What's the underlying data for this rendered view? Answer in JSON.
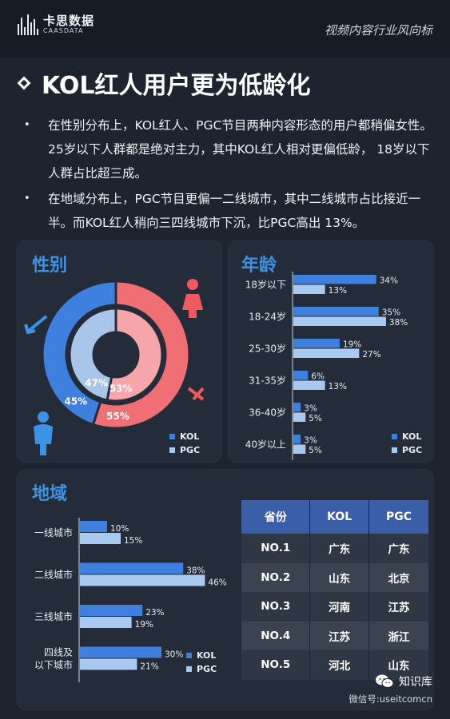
{
  "header": {
    "brand_name": "卡思数据",
    "brand_sub": "CAASDATA",
    "right_text": "视频内容行业风向标"
  },
  "title": "KOL红人用户更为低龄化",
  "bullets": [
    "在性别分布上，KOL红人、PGC节目两种内容形态的用户都稍偏女性。25岁以下人群都是绝对主力，其中KOL红人相对更偏低龄， 18岁以下人群占比超三成。",
    "在地域分布上，PGC节目更偏一二线城市，其中二线城市占比接近一半。而KOL红人稍向三四线城市下沉，比PGC高出 13%。"
  ],
  "colors": {
    "kol_bar": "#3f7fdd",
    "pgc_bar": "#a9c9f0",
    "donut_blue": "#3f7fdd",
    "donut_red": "#f06f75",
    "donut_blue_inner": "#a9c5ea",
    "donut_red_inner": "#f6a6aa",
    "male_icon": "#3c93e6",
    "female_icon": "#f05a5f"
  },
  "gender": {
    "title": "性别",
    "legend": [
      "KOL",
      "PGC"
    ]
  },
  "age": {
    "title": "年龄",
    "legend": [
      "KOL",
      "PGC"
    ]
  },
  "region": {
    "title": "地域",
    "legend": [
      "KOL",
      "PGC"
    ]
  },
  "chart_data": [
    {
      "type": "pie",
      "subtype": "donut",
      "title": "性别",
      "series": [
        {
          "name": "KOL",
          "ring": "outer",
          "values": [
            45,
            55
          ],
          "labels": [
            "45%",
            "55%"
          ]
        },
        {
          "name": "PGC",
          "ring": "inner",
          "values": [
            47,
            53
          ],
          "labels": [
            "47%",
            "53%"
          ]
        }
      ]
    },
    {
      "type": "bar",
      "orientation": "horizontal",
      "title": "年龄",
      "categories": [
        "18岁以下",
        "18-24岁",
        "25-30岁",
        "31-35岁",
        "36-40岁",
        "40岁以上"
      ],
      "series": [
        {
          "name": "KOL",
          "values": [
            34,
            35,
            19,
            6,
            3,
            3
          ]
        },
        {
          "name": "PGC",
          "values": [
            13,
            38,
            27,
            13,
            5,
            5
          ]
        }
      ],
      "legend": "bottom-right"
    },
    {
      "type": "bar",
      "orientation": "horizontal",
      "title": "地域",
      "categories": [
        "一线城市",
        "二线城市",
        "三线城市",
        "四线及\n以下城市"
      ],
      "series": [
        {
          "name": "KOL",
          "values": [
            10,
            38,
            23,
            30
          ]
        },
        {
          "name": "PGC",
          "values": [
            15,
            46,
            19,
            21
          ]
        }
      ],
      "legend": "bottom-right"
    },
    {
      "type": "table",
      "columns": [
        "省份",
        "KOL",
        "PGC"
      ],
      "rows": [
        [
          "NO.1",
          "广东",
          "广东"
        ],
        [
          "NO.2",
          "山东",
          "北京"
        ],
        [
          "NO.3",
          "河南",
          "江苏"
        ],
        [
          "NO.4",
          "江苏",
          "浙江"
        ],
        [
          "NO.5",
          "河北",
          "山东"
        ]
      ]
    }
  ],
  "footer": {
    "brand": "知识库",
    "wechat_id": "微信号:useitcomcn"
  }
}
